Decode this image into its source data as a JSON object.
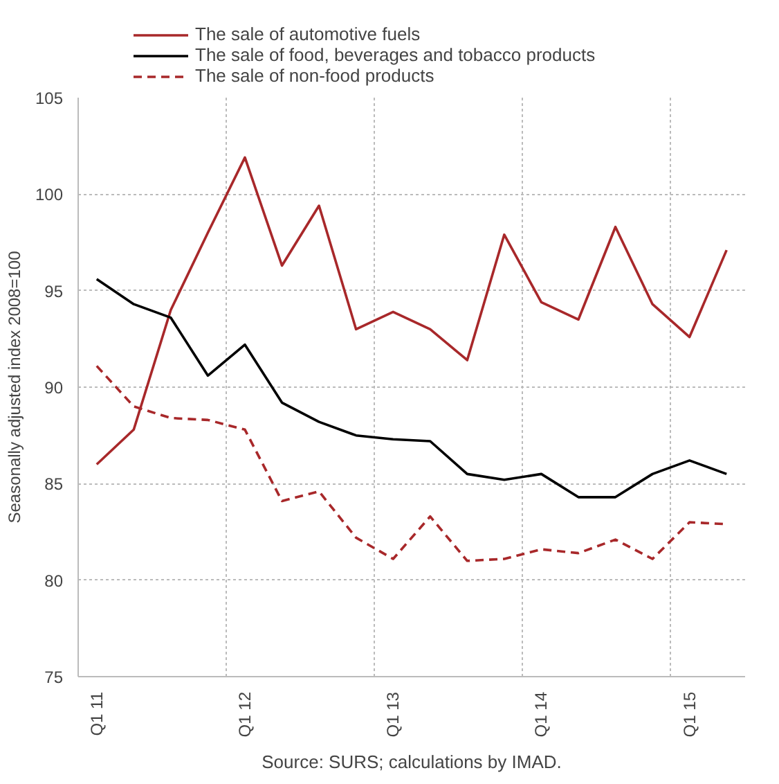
{
  "chart_data": {
    "type": "line",
    "ylabel": "Seasonally adjusted index 2008=100",
    "categories": [
      "Q1 11",
      null,
      null,
      null,
      "Q1 12",
      null,
      null,
      null,
      "Q1 13",
      null,
      null,
      null,
      "Q1 14",
      null,
      null,
      null,
      "Q1 15",
      null
    ],
    "series": [
      {
        "name": "The sale of automotive fuels",
        "color": "#a8282a",
        "line_style": "solid",
        "values": [
          86,
          87.8,
          94,
          98,
          101.9,
          96.3,
          99.4,
          93,
          93.9,
          93,
          91.4,
          97.9,
          94.4,
          93.5,
          98.3,
          94.3,
          92.6,
          97.1
        ]
      },
      {
        "name": "The sale of food, beverages and tobacco products",
        "color": "#000000",
        "line_style": "solid",
        "values": [
          95.6,
          94.3,
          93.6,
          90.6,
          92.2,
          89.2,
          88.2,
          87.5,
          87.3,
          87.2,
          85.5,
          85.2,
          85.5,
          84.3,
          84.3,
          85.5,
          86.2,
          85.5
        ]
      },
      {
        "name": "The sale of non-food products",
        "color": "#a8282a",
        "line_style": "dashed",
        "values": [
          91.1,
          89,
          88.4,
          88.3,
          87.8,
          84.1,
          84.6,
          82.2,
          81.1,
          83.3,
          81,
          81.1,
          81.6,
          81.4,
          82.1,
          81.1,
          83,
          82.9
        ]
      }
    ],
    "ylim": [
      75,
      105
    ],
    "yticks": [
      75,
      80,
      85,
      90,
      95,
      100,
      105
    ],
    "grid": true,
    "legend": "top",
    "annotations": [
      "Source: SURS; calculations by IMAD."
    ]
  }
}
